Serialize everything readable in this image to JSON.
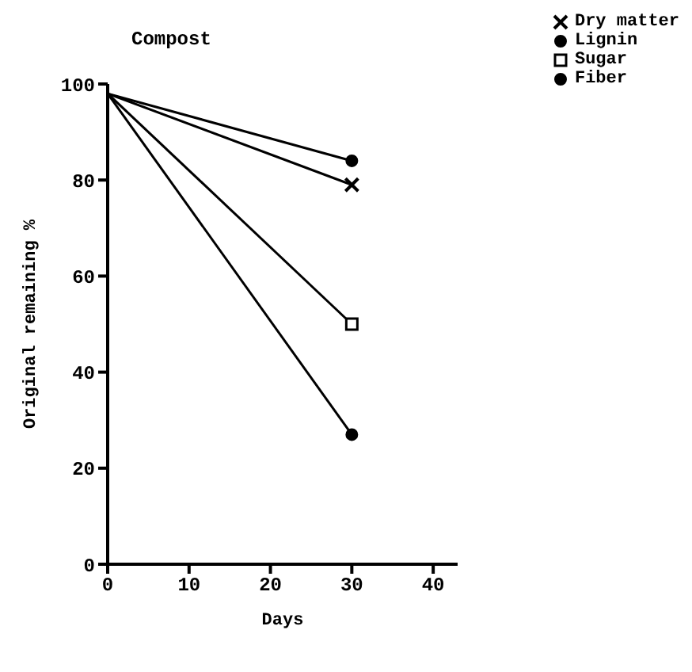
{
  "chart_data": {
    "type": "line",
    "title": "Compost",
    "xlabel": "Days",
    "ylabel": "Original remaining %",
    "x": [
      0,
      30
    ],
    "series": [
      {
        "name": "Dry matter",
        "color": "#000000",
        "values": [
          98,
          79
        ],
        "marker": "cross"
      },
      {
        "name": "Lignin",
        "color": "#000000",
        "values": [
          98,
          84
        ],
        "marker": "circle"
      },
      {
        "name": "Sugar",
        "color": "#000000",
        "values": [
          98,
          50
        ],
        "marker": "square"
      },
      {
        "name": "Fiber",
        "color": "#000000",
        "values": [
          98,
          27
        ],
        "marker": "circle"
      }
    ],
    "xlim": [
      0,
      43
    ],
    "xticks": [
      0,
      10,
      20,
      30,
      40
    ],
    "ylim": [
      0,
      100
    ],
    "yticks": [
      0,
      20,
      40,
      60,
      80,
      100
    ],
    "grid": false,
    "legend": "top right"
  }
}
